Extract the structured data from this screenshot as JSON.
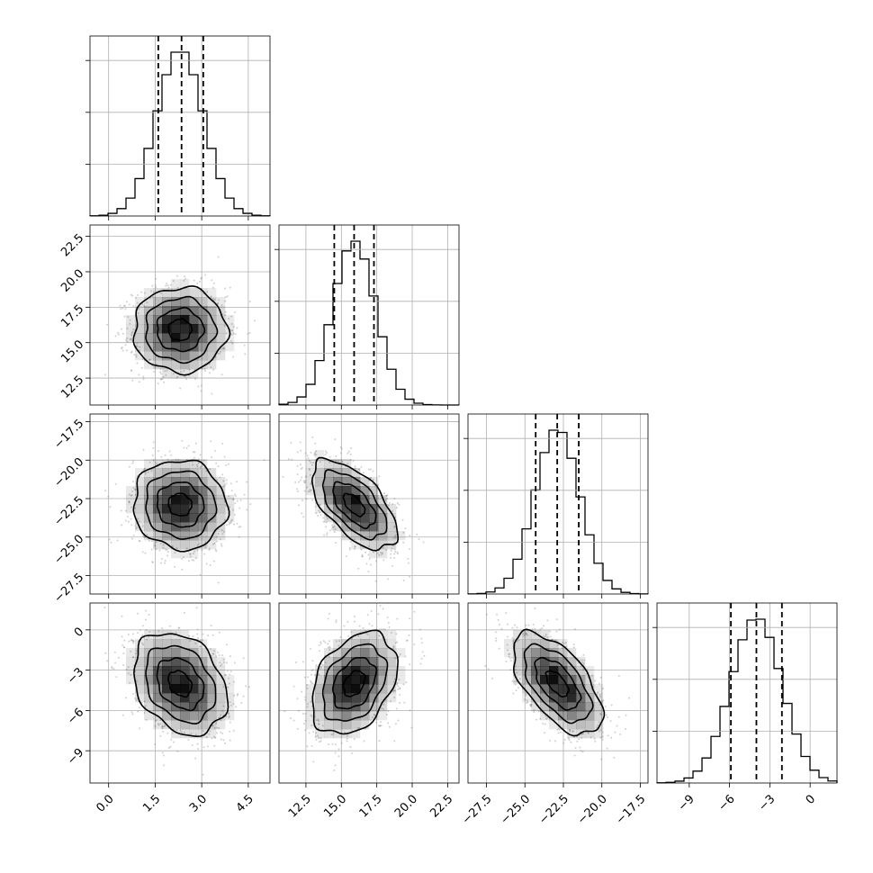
{
  "chart_data": {
    "type": "corner",
    "variables": [
      {
        "lim": [
          -0.6,
          5.2
        ],
        "ticks": [
          0.0,
          1.5,
          3.0,
          4.5
        ],
        "tick_labels": [
          "0.0",
          "1.5",
          "3.0",
          "4.5"
        ],
        "mean": 2.3,
        "sd": 0.75,
        "quantiles": [
          1.6,
          2.35,
          3.05
        ]
      },
      {
        "lim": [
          10.6,
          23.3
        ],
        "ticks": [
          12.5,
          15.0,
          17.5,
          20.0,
          22.5
        ],
        "tick_labels": [
          "12.5",
          "15.0",
          "17.5",
          "20.0",
          "22.5"
        ],
        "mean": 15.9,
        "sd": 1.5,
        "quantiles": [
          14.5,
          15.9,
          17.3
        ]
      },
      {
        "lim": [
          -28.7,
          -17.0
        ],
        "ticks": [
          -27.5,
          -25.0,
          -22.5,
          -20.0,
          -17.5
        ],
        "tick_labels": [
          "−27.5",
          "−25.0",
          "−22.5",
          "−20.0",
          "−17.5"
        ],
        "mean": -22.9,
        "sd": 1.45,
        "quantiles": [
          -24.3,
          -22.9,
          -21.5
        ]
      },
      {
        "lim": [
          -11.4,
          2.0
        ],
        "ticks": [
          -9,
          -6,
          -3,
          0
        ],
        "tick_labels": [
          "−9",
          "−6",
          "−3",
          "0"
        ],
        "mean": -4.0,
        "sd": 1.9,
        "quantiles": [
          -5.9,
          -4.0,
          -2.1
        ]
      }
    ],
    "correlations": [
      {
        "pair": [
          1,
          0
        ],
        "r": 0.0
      },
      {
        "pair": [
          2,
          0
        ],
        "r": -0.05
      },
      {
        "pair": [
          3,
          0
        ],
        "r": -0.28
      },
      {
        "pair": [
          2,
          1
        ],
        "r": -0.6
      },
      {
        "pair": [
          3,
          1
        ],
        "r": 0.35
      },
      {
        "pair": [
          3,
          2
        ],
        "r": -0.6
      }
    ],
    "histogram_bins": 20,
    "contour_levels_sigma": [
      0.5,
      1.0,
      1.5,
      2.0
    ],
    "grid": true,
    "colors": {
      "line": "#000000",
      "points": "#7a7a7a",
      "grid": "#b0b0b0",
      "density": "#000000"
    }
  }
}
